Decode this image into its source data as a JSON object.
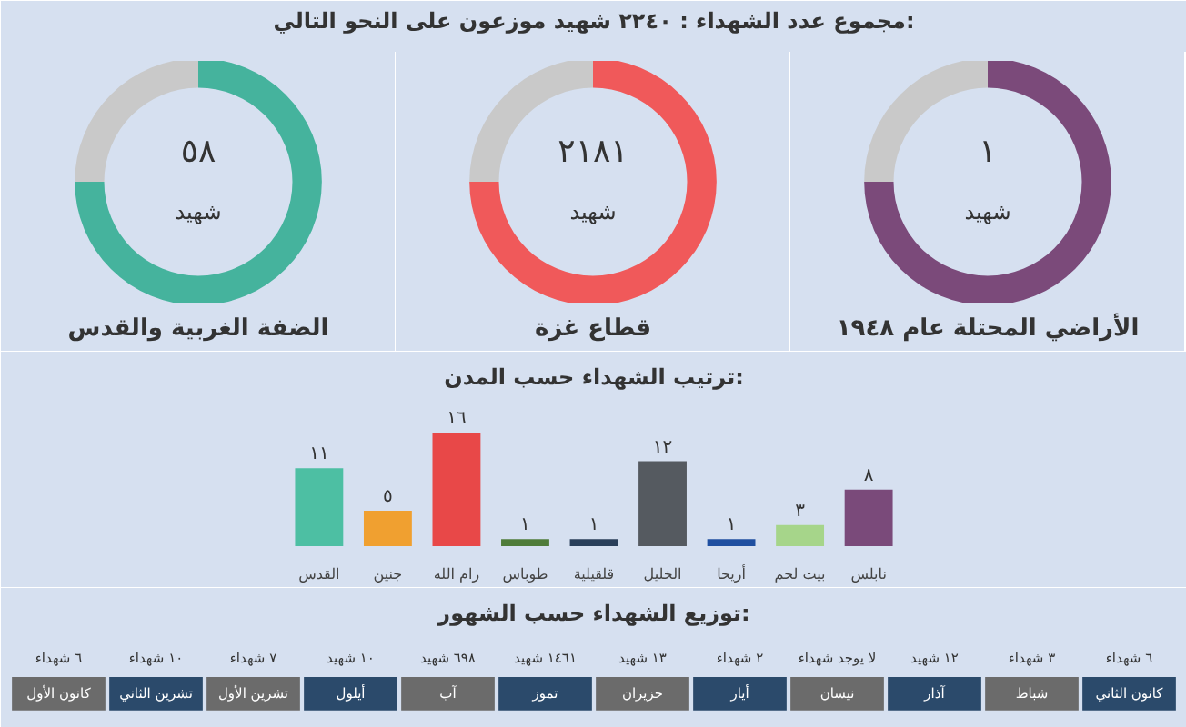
{
  "chart_data": [
    {
      "type": "other",
      "title": "مجموع عدد الشهداء : ٢٢٤٠ شهيد موزعون على النحو التالي:"
    },
    {
      "type": "donut",
      "title": "الضفة الغربية والقدس",
      "annotations": [
        "٥٨",
        "شهيد"
      ],
      "categories": [
        null,
        null
      ],
      "values": [
        75,
        25
      ],
      "colors": [
        "#45b39d",
        "#c9c9c9"
      ]
    },
    {
      "type": "donut",
      "title": "قطاع غزة",
      "annotations": [
        "٢١٨١",
        "شهيد"
      ],
      "categories": [
        null,
        null
      ],
      "values": [
        75,
        25
      ],
      "colors": [
        "#f0595a",
        "#c9c9c9"
      ]
    },
    {
      "type": "donut",
      "title": "الأراضي المحتلة عام ١٩٤٨",
      "annotations": [
        "١",
        "شهيد"
      ],
      "categories": [
        null,
        null
      ],
      "values": [
        75,
        25
      ],
      "colors": [
        "#7b4a7a",
        "#c9c9c9"
      ]
    },
    {
      "type": "bar",
      "title": "ترتيب الشهداء حسب المدن:",
      "categories": [
        "القدس",
        "جنين",
        "رام الله",
        "طوباس",
        "قلقيلية",
        "الخليل",
        "أريحا",
        "بيت لحم",
        "نابلس"
      ],
      "values": [
        11,
        5,
        16,
        1,
        1,
        12,
        1,
        3,
        8
      ],
      "value_labels": [
        "١١",
        "٥",
        "١٦",
        "١",
        "١",
        "١٢",
        "١",
        "٣",
        "٨"
      ],
      "colors": [
        "#4dbfa3",
        "#f0a030",
        "#e84848",
        "#4f7c3a",
        "#2a3f5a",
        "#555a60",
        "#1f4fa0",
        "#a6d58a",
        "#7a4a7a"
      ]
    },
    {
      "type": "other",
      "title": "توزيع الشهداء حسب الشهور:",
      "categories": [
        "كانون الأول",
        "تشرين الثاني",
        "تشرين الأول",
        "أيلول",
        "آب",
        "تموز",
        "حزيران",
        "أيار",
        "نيسان",
        "آذار",
        "شباط",
        "كانون الثاني"
      ],
      "value_labels": [
        "٦ شهداء",
        "١٠ شهداء",
        "٧ شهداء",
        "١٠ شهيد",
        "٦٩٨ شهيد",
        "١٤٦١ شهيد",
        "١٣ شهيد",
        "٢ شهداء",
        "لا يوجد شهداء",
        "١٢ شهيد",
        "٣ شهداء",
        "٦ شهداء"
      ],
      "colors": [
        "#6b6b6b",
        "#2b4a6b",
        "#6b6b6b",
        "#2b4a6b",
        "#6b6b6b",
        "#2b4a6b",
        "#6b6b6b",
        "#2b4a6b",
        "#6b6b6b",
        "#2b4a6b",
        "#6b6b6b",
        "#2b4a6b"
      ]
    }
  ]
}
